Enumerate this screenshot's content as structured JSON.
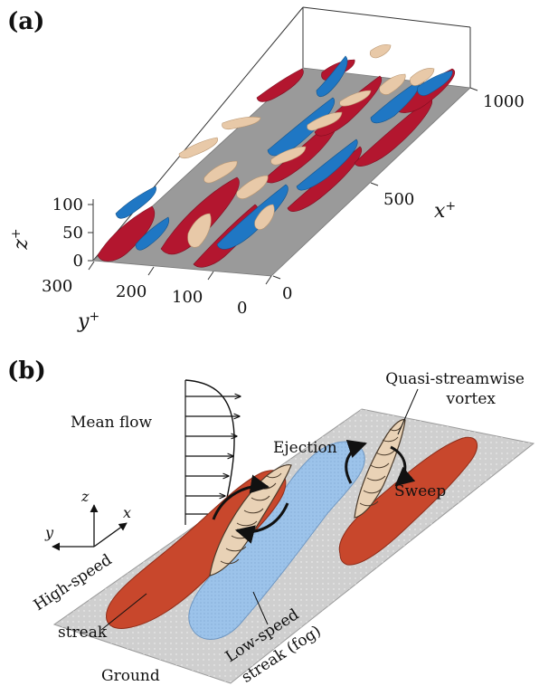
{
  "panel_a": {
    "label": "(a)",
    "z_ticks": [
      "100",
      "50",
      "0"
    ],
    "z_label": "z",
    "z_sup": "+",
    "y_ticks": [
      "300",
      "200",
      "100",
      "0"
    ],
    "y_label": "y",
    "y_sup": "+",
    "x_ticks": [
      "0",
      "500",
      "1000"
    ],
    "x_label": "x",
    "x_sup": "+",
    "colors": {
      "high_speed": "#b3162f",
      "low_speed": "#1f77c4",
      "vortex": "#e8c9a8",
      "floor": "#9a9a9a"
    }
  },
  "panel_b": {
    "label": "(b)",
    "mean_flow": "Mean flow",
    "quasi_line1": "Quasi-streamwise",
    "quasi_line2": "vortex",
    "ejection": "Ejection",
    "sweep": "Sweep",
    "high_speed_line1": "High-speed",
    "high_speed_line2": "streak",
    "low_speed_line1": "Low-speed",
    "low_speed_line2": "streak (fog)",
    "ground": "Ground",
    "axis_z": "z",
    "axis_x": "x",
    "axis_y": "y",
    "colors": {
      "high_speed": "#c8472c",
      "low_speed": "#9cc3ea",
      "vortex": "#e9d2b6",
      "ground": "#cfcfcf"
    }
  }
}
